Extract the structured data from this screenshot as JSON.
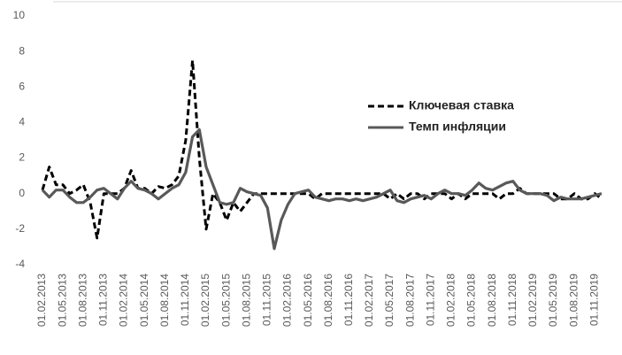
{
  "chart_data": {
    "type": "line",
    "categories": [
      "01.02.2013",
      null,
      null,
      "01.05.2013",
      null,
      null,
      "01.08.2013",
      null,
      null,
      "01.11.2013",
      null,
      null,
      "01.02.2014",
      null,
      null,
      "01.05.2014",
      null,
      null,
      "01.08.2014",
      null,
      null,
      "01.11.2014",
      null,
      null,
      "01.02.2015",
      null,
      null,
      "01.05.2015",
      null,
      null,
      "01.08.2015",
      null,
      null,
      "01.11.2015",
      null,
      null,
      "01.02.2016",
      null,
      null,
      "01.05.2016",
      null,
      null,
      "01.08.2016",
      null,
      null,
      "01.11.2016",
      null,
      null,
      "01.02.2017",
      null,
      null,
      "01.05.2017",
      null,
      null,
      "01.08.2017",
      null,
      null,
      "01.11.2017",
      null,
      null,
      "01.02.2018",
      null,
      null,
      "01.05.2018",
      null,
      null,
      "01.08.2018",
      null,
      null,
      "01.11.2018",
      null,
      null,
      "01.02.2019",
      null,
      null,
      "01.05.2019",
      null,
      null,
      "01.08.2019",
      null,
      null,
      "01.11.2019",
      null
    ],
    "series": [
      {
        "name": "Ключевая ставка",
        "color": "#000000",
        "dash": true,
        "values": [
          0.2,
          1.5,
          0.5,
          0.5,
          0,
          0.2,
          0.5,
          -0.5,
          -2.5,
          0,
          0,
          0,
          0.3,
          1.3,
          0.3,
          0.3,
          0,
          0.4,
          0.3,
          0.5,
          1,
          3,
          7.5,
          2,
          -2,
          0,
          -0.5,
          -1.5,
          -0.5,
          -1,
          -0.5,
          0,
          0,
          0,
          0,
          0,
          0,
          0,
          0,
          0,
          -0.3,
          0,
          0,
          0,
          0,
          0,
          0,
          0,
          0,
          0,
          0,
          -0.3,
          0,
          -0.3,
          0,
          0,
          -0.3,
          0,
          0,
          0,
          -0.3,
          0,
          -0.3,
          0,
          0,
          0,
          0,
          -0.3,
          0,
          0,
          0.3,
          0,
          0,
          0,
          0,
          0,
          -0.3,
          -0.3,
          0,
          -0.3,
          -0.3,
          0,
          -0.3
        ]
      },
      {
        "name": "Темп инфляции",
        "color": "#595959",
        "dash": false,
        "values": [
          0.2,
          -0.2,
          0.2,
          0.2,
          -0.2,
          -0.5,
          -0.5,
          -0.2,
          0.2,
          0.3,
          0,
          -0.3,
          0.3,
          0.7,
          0.3,
          0.2,
          0,
          -0.3,
          0,
          0.3,
          0.5,
          1.2,
          3.2,
          3.6,
          1.5,
          0.5,
          -0.5,
          -0.6,
          -0.5,
          0.3,
          0.1,
          0,
          -0.1,
          -0.8,
          -3.1,
          -1.5,
          -0.6,
          0,
          0.1,
          0.2,
          -0.2,
          -0.3,
          -0.4,
          -0.3,
          -0.3,
          -0.4,
          -0.3,
          -0.4,
          -0.3,
          -0.2,
          0,
          0.2,
          -0.4,
          -0.5,
          -0.3,
          -0.2,
          -0.1,
          -0.3,
          0,
          0.2,
          0,
          0,
          -0.1,
          0.2,
          0.6,
          0.3,
          0.2,
          0.4,
          0.6,
          0.7,
          0.2,
          0,
          0,
          0,
          -0.1,
          -0.4,
          -0.2,
          -0.3,
          -0.3,
          -0.3,
          -0.2,
          -0.1,
          0
        ]
      }
    ],
    "ylim": [
      -4,
      10
    ],
    "yticks": [
      -4,
      -2,
      0,
      2,
      4,
      6,
      8,
      10
    ],
    "grid": false
  }
}
